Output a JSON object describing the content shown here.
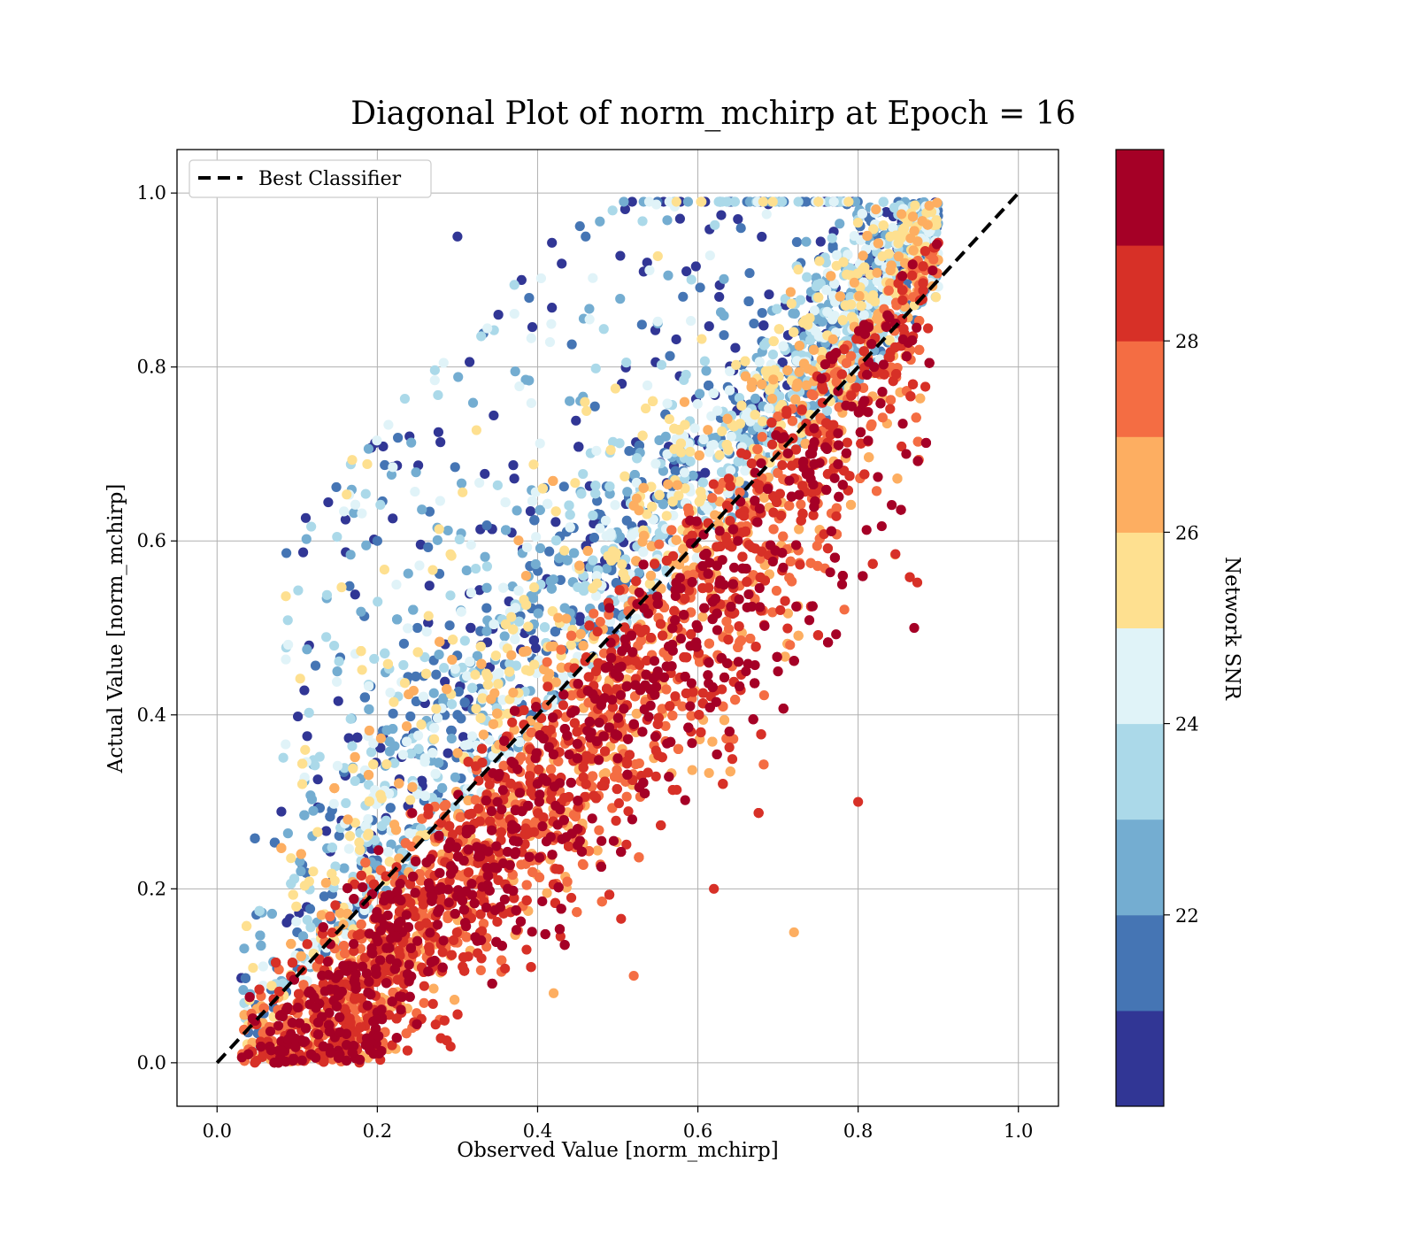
{
  "chart_data": {
    "type": "scatter",
    "title": "Diagonal Plot of norm_mchirp at Epoch = 16",
    "xlabel": "Observed Value [norm_mchirp]",
    "ylabel": "Actual Value [norm_mchirp]",
    "xlim": [
      -0.05,
      1.05
    ],
    "ylim": [
      -0.05,
      1.05
    ],
    "x_ticks": [
      "0.0",
      "0.2",
      "0.4",
      "0.6",
      "0.8",
      "1.0"
    ],
    "y_ticks": [
      "0.0",
      "0.2",
      "0.4",
      "0.6",
      "0.8",
      "1.0"
    ],
    "grid": true,
    "legend": {
      "placement": "upper-left",
      "entries": [
        "Best Classifier"
      ]
    },
    "reference_line": {
      "name": "Best Classifier",
      "style": "dashed",
      "color": "#000000",
      "x": [
        0.0,
        1.0
      ],
      "y": [
        0.0,
        1.0
      ]
    },
    "colorbar": {
      "label": "Network SNR",
      "range": [
        20.0,
        30.0
      ],
      "ticks": [
        "22",
        "24",
        "26",
        "28"
      ],
      "colormap": "RdYlBu_r",
      "colors": [
        "#313695",
        "#4575b4",
        "#74add1",
        "#abd9e9",
        "#e0f3f8",
        "#fee090",
        "#fdae61",
        "#f46d43",
        "#d73027",
        "#a50026"
      ]
    },
    "scatter_sample": {
      "note_points": 40,
      "points": [
        [
          0.05,
          0.02,
          23.5
        ],
        [
          0.1,
          0.15,
          21.2
        ],
        [
          0.15,
          0.1,
          27.8
        ],
        [
          0.2,
          0.25,
          22.4
        ],
        [
          0.25,
          0.14,
          29.1
        ],
        [
          0.3,
          0.4,
          21.6
        ],
        [
          0.33,
          0.12,
          28.4
        ],
        [
          0.35,
          0.3,
          29.5
        ],
        [
          0.4,
          0.45,
          23.1
        ],
        [
          0.42,
          0.08,
          26.5
        ],
        [
          0.45,
          0.25,
          29.6
        ],
        [
          0.47,
          0.62,
          20.9
        ],
        [
          0.5,
          0.35,
          29.4
        ],
        [
          0.52,
          0.1,
          27.2
        ],
        [
          0.55,
          0.45,
          29.8
        ],
        [
          0.56,
          0.72,
          22.5
        ],
        [
          0.6,
          0.5,
          29.7
        ],
        [
          0.62,
          0.2,
          28.1
        ],
        [
          0.65,
          0.6,
          29.2
        ],
        [
          0.67,
          0.85,
          21.8
        ],
        [
          0.7,
          0.45,
          29.9
        ],
        [
          0.72,
          0.15,
          26.9
        ],
        [
          0.74,
          0.7,
          29.5
        ],
        [
          0.76,
          0.92,
          23.4
        ],
        [
          0.78,
          0.55,
          29.8
        ],
        [
          0.8,
          0.3,
          28.6
        ],
        [
          0.82,
          0.8,
          29.7
        ],
        [
          0.84,
          0.95,
          25.2
        ],
        [
          0.86,
          0.7,
          29.6
        ],
        [
          0.87,
          0.5,
          29.3
        ],
        [
          0.2,
          0.6,
          21.1
        ],
        [
          0.15,
          0.45,
          22.7
        ],
        [
          0.25,
          0.5,
          21.9
        ],
        [
          0.3,
          0.95,
          20.5
        ],
        [
          0.38,
          0.9,
          20.8
        ],
        [
          0.46,
          0.95,
          21.3
        ],
        [
          0.55,
          0.85,
          22.1
        ],
        [
          0.65,
          0.97,
          20.6
        ],
        [
          0.08,
          0.08,
          24.8
        ],
        [
          0.12,
          0.22,
          25.9
        ]
      ]
    }
  }
}
